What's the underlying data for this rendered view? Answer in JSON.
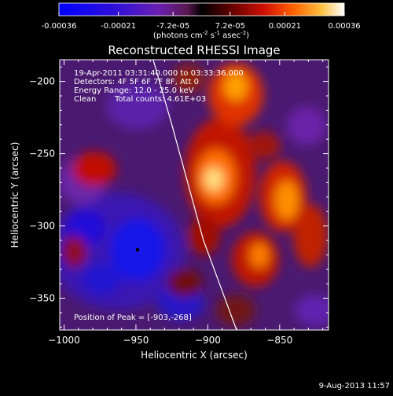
{
  "colorbar": {
    "tick_labels": [
      "-0.00036",
      "-0.00021",
      "-7.2e-05",
      "7.2e-05",
      "0.00021",
      "0.00036"
    ],
    "tick_values": [
      -0.00036,
      -0.00021,
      -7.2e-05,
      7.2e-05,
      0.00021,
      0.00036
    ],
    "range": [
      -0.00036,
      0.00036
    ],
    "units_prefix": "(photons cm",
    "units_exp1": "-2",
    "units_mid": " s",
    "units_exp2": "-1",
    "units_mid2": " asec",
    "units_exp3": "-2",
    "units_suffix": ")",
    "colors": [
      "#1010e0",
      "#3a18d0",
      "#6a28b8",
      "#8a3aa0",
      "#2a0c12",
      "#500808",
      "#a00a00",
      "#e03000",
      "#ff7a00",
      "#ffc040",
      "#ffffff"
    ]
  },
  "annotations": {
    "line1": "19-Apr-2011 03:31:40.000 to 03:33:36.000",
    "line2": "Detectors: 4F 5F 6F 7F 8F, Att 0",
    "line3": "Energy Range: 12.0 - 25.0 keV",
    "line4_left": "Clean",
    "line4_right": "Total counts: 4.61E+03",
    "peak": "Position of Peak = [-903,-268]"
  },
  "footer": {
    "date": "9-Aug-2013 11:57"
  },
  "chart_data": {
    "type": "heatmap",
    "title": "Reconstructed RHESSI Image",
    "xlabel": "Heliocentric X (arcsec)",
    "ylabel": "Heliocentric Y (arcsec)",
    "xlim": [
      -1003,
      -816
    ],
    "ylim": [
      -372,
      -185
    ],
    "x_ticks": [
      -1000,
      -950,
      -900,
      -850
    ],
    "x_tick_labels": [
      "−1000",
      "−950",
      "−900",
      "−850"
    ],
    "y_ticks": [
      -350,
      -300,
      -250,
      -200
    ],
    "y_tick_labels": [
      "−350",
      "−300",
      "−250",
      "−200"
    ],
    "peak_position": [
      -903,
      -268
    ],
    "limb_curve": [
      [
        -938,
        -185
      ],
      [
        -925,
        -230
      ],
      [
        -914,
        -270
      ],
      [
        -903,
        -310
      ],
      [
        -890,
        -345
      ],
      [
        -880,
        -372
      ]
    ],
    "min_marker": [
      -950,
      -310
    ],
    "grid": false
  }
}
